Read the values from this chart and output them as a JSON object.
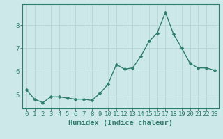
{
  "xlabel": "Humidex (Indice chaleur)",
  "ylabel": "",
  "x": [
    0,
    1,
    2,
    3,
    4,
    5,
    6,
    7,
    8,
    9,
    10,
    11,
    12,
    13,
    14,
    15,
    16,
    17,
    18,
    19,
    20,
    21,
    22,
    23
  ],
  "y": [
    5.2,
    4.8,
    4.65,
    4.9,
    4.9,
    4.85,
    4.8,
    4.8,
    4.75,
    5.05,
    5.45,
    6.3,
    6.1,
    6.15,
    6.65,
    7.3,
    7.65,
    8.55,
    7.6,
    7.0,
    6.35,
    6.15,
    6.15,
    6.05
  ],
  "line_color": "#2e7d6e",
  "marker": "D",
  "marker_size": 2.5,
  "line_width": 1.0,
  "background_color": "#cde8e8",
  "grid_color": "#b8d8d8",
  "axis_color": "#2e7d6e",
  "tick_color": "#2e7d6e",
  "ylim": [
    4.4,
    8.9
  ],
  "yticks": [
    5,
    6,
    7,
    8
  ],
  "xticks": [
    0,
    1,
    2,
    3,
    4,
    5,
    6,
    7,
    8,
    9,
    10,
    11,
    12,
    13,
    14,
    15,
    16,
    17,
    18,
    19,
    20,
    21,
    22,
    23
  ],
  "xlabel_fontsize": 7.5,
  "tick_fontsize": 6.5
}
